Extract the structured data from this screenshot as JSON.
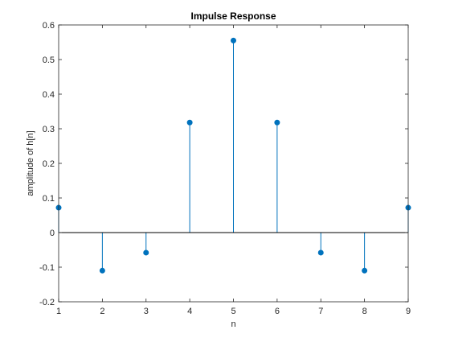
{
  "chart_data": {
    "type": "stem",
    "title": "Impulse Response",
    "xlabel": "n",
    "ylabel": "amplitude of h[n]",
    "xlim": [
      1,
      9
    ],
    "ylim": [
      -0.2,
      0.6
    ],
    "x_ticks": [
      "1",
      "2",
      "3",
      "4",
      "5",
      "6",
      "7",
      "8",
      "9"
    ],
    "y_ticks": [
      "-0.2",
      "-0.1",
      "0",
      "0.1",
      "0.2",
      "0.3",
      "0.4",
      "0.5",
      "0.6"
    ],
    "x": [
      1,
      2,
      3,
      4,
      5,
      6,
      7,
      8,
      9
    ],
    "values": [
      0.072,
      -0.11,
      -0.058,
      0.318,
      0.555,
      0.318,
      -0.058,
      -0.11,
      0.072
    ],
    "grid": false,
    "color": "#0072BD"
  }
}
